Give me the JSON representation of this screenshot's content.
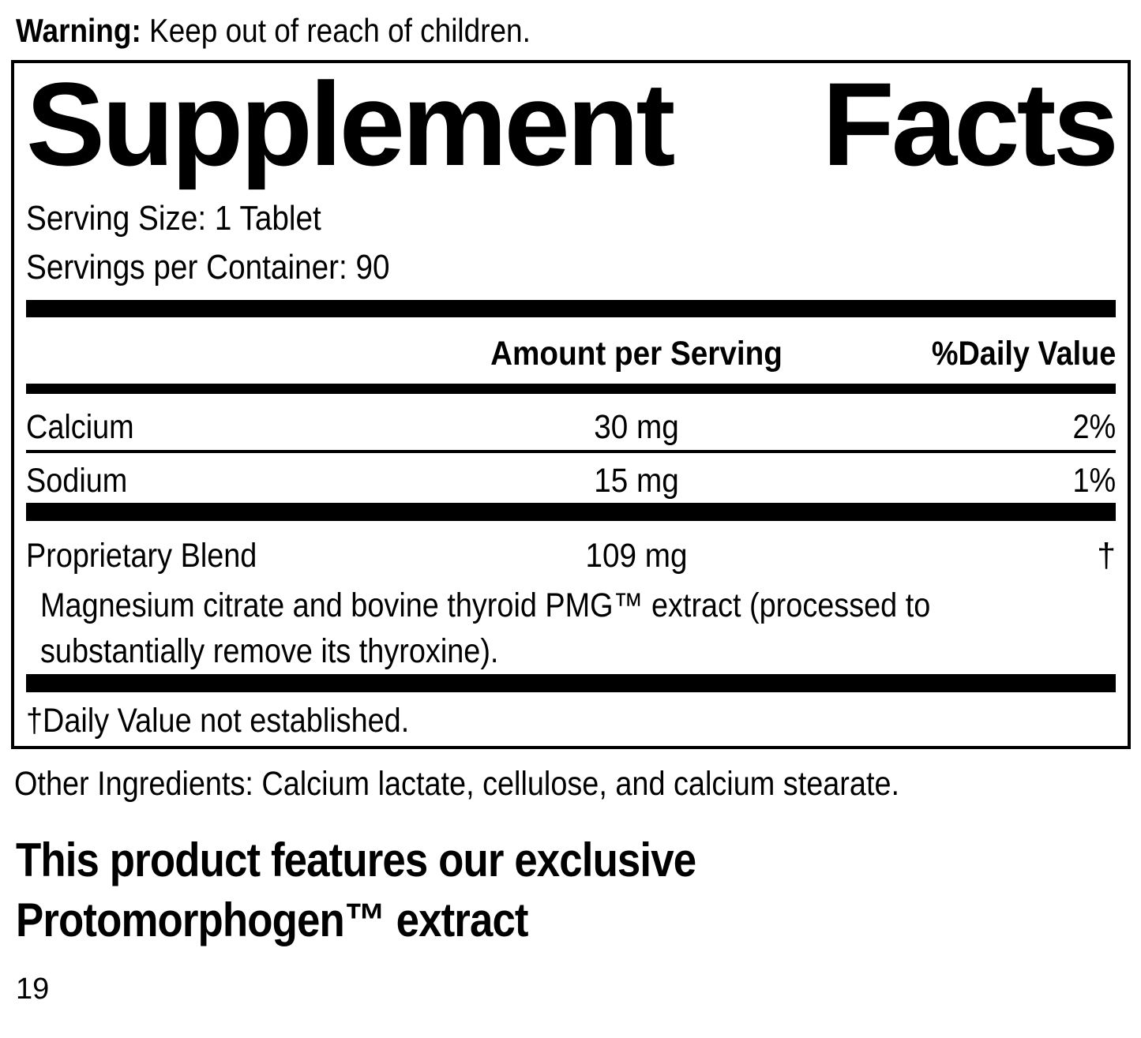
{
  "colors": {
    "text": "#000000",
    "background": "#ffffff"
  },
  "warning": {
    "label": "Warning:",
    "text": " Keep out of reach of children."
  },
  "panel": {
    "title": {
      "word1": "Supplement",
      "word2": "Facts"
    },
    "serving_size": "Serving Size: 1 Tablet",
    "servings_per_container": "Servings per Container: 90",
    "columns": {
      "amount": "Amount per Serving",
      "daily_value": "%Daily Value"
    },
    "rows": [
      {
        "name": "Calcium",
        "amount": "30 mg",
        "daily_value": "2%"
      },
      {
        "name": "Sodium",
        "amount": "15 mg",
        "daily_value": "1%"
      }
    ],
    "blend": {
      "name": "Proprietary Blend",
      "amount": "109 mg",
      "daily_value": "†",
      "description_line1": "Magnesium citrate and bovine thyroid PMG™ extract (processed to",
      "description_line2": "substantially remove its thyroxine)."
    },
    "footnote": "†Daily Value not established."
  },
  "other_ingredients": "Other Ingredients: Calcium lactate, cellulose, and calcium stearate.",
  "feature": {
    "line1": "This product features our exclusive",
    "line2": "Protomorphogen™ extract"
  },
  "page_number": "19"
}
